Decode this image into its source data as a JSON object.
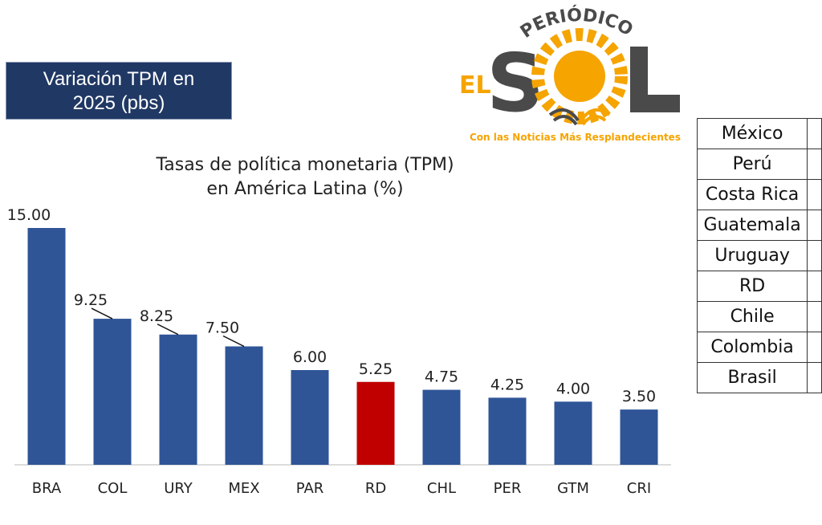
{
  "header": {
    "title_line1": "Variación TPM en",
    "title_line2": "2025 (pbs)"
  },
  "logo": {
    "top": "PERIÓDICO",
    "left": "EL",
    "main": "SOL",
    "tagline": "Con las Noticias Más Resplandecientes"
  },
  "table": {
    "rows": [
      "México",
      "Perú",
      "Costa Rica",
      "Guatemala",
      "Uruguay",
      "RD",
      "Chile",
      "Colombia",
      "Brasil"
    ]
  },
  "colors": {
    "bar": "#2f5597",
    "highlight": "#c00000",
    "logo_orange": "#f5a400",
    "logo_gray": "#4a4a4a"
  },
  "chart_data": {
    "type": "bar",
    "title": "Tasas de política monetaria (TPM)",
    "subtitle": "en América Latina (%)",
    "categories": [
      "BRA",
      "COL",
      "URY",
      "MEX",
      "PAR",
      "RD",
      "CHL",
      "PER",
      "GTM",
      "CRI"
    ],
    "values": [
      15.0,
      9.25,
      8.25,
      7.5,
      6.0,
      5.25,
      4.75,
      4.25,
      4.0,
      3.5
    ],
    "value_labels": [
      "15.00",
      "9.25",
      "8.25",
      "7.50",
      "6.00",
      "5.25",
      "4.75",
      "4.25",
      "4.00",
      "3.50"
    ],
    "highlight": "RD",
    "ylim": [
      0,
      15
    ],
    "grid": false,
    "xlabel": "",
    "ylabel": ""
  }
}
